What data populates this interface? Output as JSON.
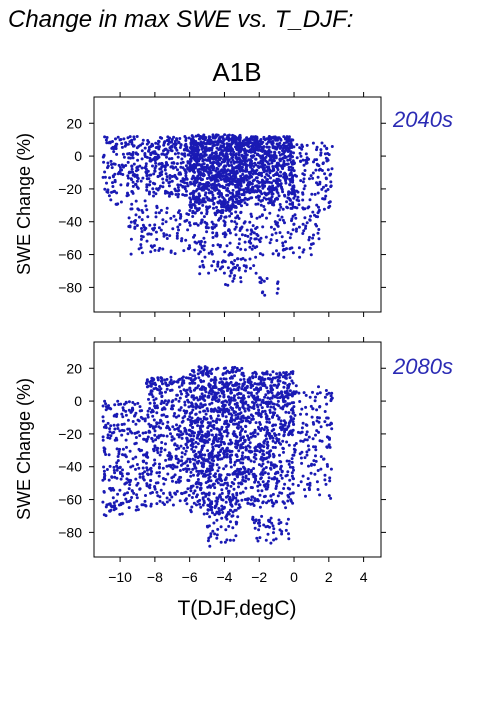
{
  "figure": {
    "title": "Change in max SWE vs. T_DJF:",
    "scenario": "A1B",
    "xlabel": "T(DJF,degC)",
    "ylabel": "SWE Change (%)",
    "point_color": "#1a1ab4",
    "label_color": "#2b2bb4"
  },
  "chart_data": [
    {
      "type": "scatter",
      "panel_label": "2040s",
      "xlabel": "T(DJF,degC)",
      "ylabel": "SWE Change (%)",
      "xlim": [
        -11.5,
        5
      ],
      "ylim": [
        -95,
        36
      ],
      "xticks": [
        -10,
        -8,
        -6,
        -4,
        -2,
        0,
        2,
        4
      ],
      "xtick_labels": [
        "−10",
        "−8",
        "−6",
        "−4",
        "−2",
        "0",
        "2",
        "4"
      ],
      "yticks": [
        -80,
        -60,
        -40,
        -20,
        0,
        20
      ],
      "ytick_labels": [
        "−80",
        "−60",
        "−40",
        "−20",
        "0",
        "20"
      ],
      "show_x_tick_labels": false,
      "grid": false,
      "clusters": [
        {
          "x": [
            -11.0,
            -8.5
          ],
          "y": [
            -30,
            12
          ],
          "n": 170
        },
        {
          "x": [
            -8.5,
            -6.0
          ],
          "y": [
            -25,
            12
          ],
          "n": 260
        },
        {
          "x": [
            -6.0,
            -3.0
          ],
          "y": [
            -35,
            13
          ],
          "n": 900
        },
        {
          "x": [
            -3.0,
            0.0
          ],
          "y": [
            -30,
            12
          ],
          "n": 650
        },
        {
          "x": [
            0.0,
            2.2
          ],
          "y": [
            -35,
            8
          ],
          "n": 120
        },
        {
          "x": [
            -9.5,
            -5.5
          ],
          "y": [
            -60,
            -30
          ],
          "n": 120
        },
        {
          "x": [
            -5.5,
            -2.0
          ],
          "y": [
            -72,
            -35
          ],
          "n": 160
        },
        {
          "x": [
            -2.0,
            1.5
          ],
          "y": [
            -62,
            -30
          ],
          "n": 110
        },
        {
          "x": [
            -4.2,
            -3.0
          ],
          "y": [
            -80,
            -60
          ],
          "n": 25
        },
        {
          "x": [
            -2.0,
            -0.8
          ],
          "y": [
            -85,
            -74
          ],
          "n": 14
        }
      ]
    },
    {
      "type": "scatter",
      "panel_label": "2080s",
      "xlabel": "T(DJF,degC)",
      "ylabel": "SWE Change (%)",
      "xlim": [
        -11.5,
        5
      ],
      "ylim": [
        -95,
        36
      ],
      "xticks": [
        -10,
        -8,
        -6,
        -4,
        -2,
        0,
        2,
        4
      ],
      "xtick_labels": [
        "−10",
        "−8",
        "−6",
        "−4",
        "−2",
        "0",
        "2",
        "4"
      ],
      "yticks": [
        -80,
        -60,
        -40,
        -20,
        0,
        20
      ],
      "ytick_labels": [
        "−80",
        "−60",
        "−40",
        "−20",
        "0",
        "20"
      ],
      "show_x_tick_labels": true,
      "grid": false,
      "clusters": [
        {
          "x": [
            -11.0,
            -8.5
          ],
          "y": [
            -70,
            0
          ],
          "n": 230
        },
        {
          "x": [
            -8.5,
            -6.0
          ],
          "y": [
            -65,
            15
          ],
          "n": 380
        },
        {
          "x": [
            -6.0,
            -3.0
          ],
          "y": [
            -70,
            21
          ],
          "n": 850
        },
        {
          "x": [
            -3.0,
            0.0
          ],
          "y": [
            -65,
            18
          ],
          "n": 650
        },
        {
          "x": [
            0.0,
            2.2
          ],
          "y": [
            -60,
            10
          ],
          "n": 140
        },
        {
          "x": [
            -5.0,
            -3.2
          ],
          "y": [
            -90,
            -60
          ],
          "n": 60
        },
        {
          "x": [
            -2.5,
            -0.3
          ],
          "y": [
            -88,
            -70
          ],
          "n": 45
        },
        {
          "x": [
            -10.8,
            -9.8
          ],
          "y": [
            -70,
            -60
          ],
          "n": 20
        }
      ]
    }
  ]
}
